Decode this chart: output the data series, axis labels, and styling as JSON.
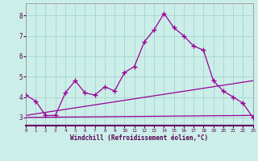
{
  "xlabel": "Windchill (Refroidissement éolien,°C)",
  "bg_color": "#cceee8",
  "grid_color": "#aad8d4",
  "line_color": "#990099",
  "x_values": [
    0,
    1,
    2,
    3,
    4,
    5,
    6,
    7,
    8,
    9,
    10,
    11,
    12,
    13,
    14,
    15,
    16,
    17,
    18,
    19,
    20,
    21,
    22,
    23
  ],
  "line1_y": [
    4.1,
    3.8,
    3.1,
    3.1,
    4.2,
    4.8,
    4.2,
    4.1,
    4.5,
    4.3,
    5.2,
    5.5,
    6.7,
    7.3,
    8.1,
    7.4,
    7.0,
    6.5,
    6.3,
    4.8,
    4.3,
    4.0,
    3.7,
    3.0
  ],
  "line2_x": [
    0,
    23
  ],
  "line2_y": [
    3.1,
    4.8
  ],
  "line3_x": [
    0,
    23
  ],
  "line3_y": [
    3.0,
    3.1
  ],
  "ylim": [
    2.6,
    8.6
  ],
  "xlim": [
    0,
    23
  ],
  "yticks": [
    3,
    4,
    5,
    6,
    7,
    8
  ]
}
